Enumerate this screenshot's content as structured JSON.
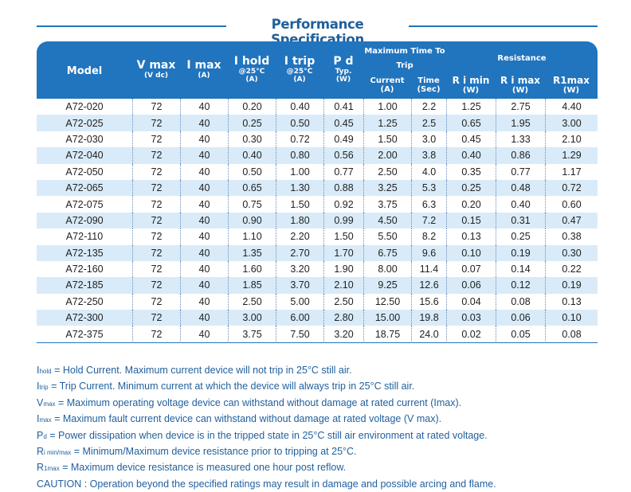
{
  "title": "Performance Specification",
  "headers": {
    "model": "Model",
    "vmax": "V max",
    "vmax_unit": "(V dc)",
    "imax": "I max",
    "imax_unit": "(A)",
    "ihold": "I hold",
    "ihold_cond": "@25°C",
    "ihold_unit": "(A)",
    "itrip": "I trip",
    "itrip_cond": "@25°C",
    "itrip_unit": "(A)",
    "pd": "P d",
    "pd_typ": "Typ.",
    "pd_unit": "(W)",
    "max_time_group": "Maximum Time To Trip",
    "current": "Current",
    "current_unit": "(A)",
    "time": "Time",
    "time_unit": "(Sec)",
    "resistance_group": "Resistance",
    "rimin": "R i min",
    "rimin_unit": "(W)",
    "rimax": "R i max",
    "rimax_unit": "(W)",
    "r1max": "R1max",
    "r1max_unit": "(W)"
  },
  "rows": [
    [
      "A72-020",
      "72",
      "40",
      "0.20",
      "0.40",
      "0.41",
      "1.00",
      "2.2",
      "1.25",
      "2.75",
      "4.40"
    ],
    [
      "A72-025",
      "72",
      "40",
      "0.25",
      "0.50",
      "0.45",
      "1.25",
      "2.5",
      "0.65",
      "1.95",
      "3.00"
    ],
    [
      "A72-030",
      "72",
      "40",
      "0.30",
      "0.72",
      "0.49",
      "1.50",
      "3.0",
      "0.45",
      "1.33",
      "2.10"
    ],
    [
      "A72-040",
      "72",
      "40",
      "0.40",
      "0.80",
      "0.56",
      "2.00",
      "3.8",
      "0.40",
      "0.86",
      "1.29"
    ],
    [
      "A72-050",
      "72",
      "40",
      "0.50",
      "1.00",
      "0.77",
      "2.50",
      "4.0",
      "0.35",
      "0.77",
      "1.17"
    ],
    [
      "A72-065",
      "72",
      "40",
      "0.65",
      "1.30",
      "0.88",
      "3.25",
      "5.3",
      "0.25",
      "0.48",
      "0.72"
    ],
    [
      "A72-075",
      "72",
      "40",
      "0.75",
      "1.50",
      "0.92",
      "3.75",
      "6.3",
      "0.20",
      "0.40",
      "0.60"
    ],
    [
      "A72-090",
      "72",
      "40",
      "0.90",
      "1.80",
      "0.99",
      "4.50",
      "7.2",
      "0.15",
      "0.31",
      "0.47"
    ],
    [
      "A72-110",
      "72",
      "40",
      "1.10",
      "2.20",
      "1.50",
      "5.50",
      "8.2",
      "0.13",
      "0.25",
      "0.38"
    ],
    [
      "A72-135",
      "72",
      "40",
      "1.35",
      "2.70",
      "1.70",
      "6.75",
      "9.6",
      "0.10",
      "0.19",
      "0.30"
    ],
    [
      "A72-160",
      "72",
      "40",
      "1.60",
      "3.20",
      "1.90",
      "8.00",
      "11.4",
      "0.07",
      "0.14",
      "0.22"
    ],
    [
      "A72-185",
      "72",
      "40",
      "1.85",
      "3.70",
      "2.10",
      "9.25",
      "12.6",
      "0.06",
      "0.12",
      "0.19"
    ],
    [
      "A72-250",
      "72",
      "40",
      "2.50",
      "5.00",
      "2.50",
      "12.50",
      "15.6",
      "0.04",
      "0.08",
      "0.13"
    ],
    [
      "A72-300",
      "72",
      "40",
      "3.00",
      "6.00",
      "2.80",
      "15.00",
      "19.8",
      "0.03",
      "0.06",
      "0.10"
    ],
    [
      "A72-375",
      "72",
      "40",
      "3.75",
      "7.50",
      "3.20",
      "18.75",
      "24.0",
      "0.02",
      "0.05",
      "0.08"
    ]
  ],
  "notes": [
    {
      "sym": "I",
      "sub": "hold",
      "text": " = Hold Current. Maximum current device will not trip in 25°C still air."
    },
    {
      "sym": "I",
      "sub": "trip",
      "text": " = Trip Current. Minimum current at which the device will always trip in 25°C still air."
    },
    {
      "sym": "V",
      "sub": "max",
      "text": " = Maximum operating voltage device can withstand without damage at rated current (Imax)."
    },
    {
      "sym": "I",
      "sub": "max",
      "text": " = Maximum fault current device can withstand without damage at rated voltage (V max)."
    },
    {
      "sym": "P",
      "sub": "d",
      "text": " = Power dissipation when device is in the tripped state in 25°C still air environment at rated voltage."
    },
    {
      "sym": "R",
      "sub": "i min/max",
      "text": " = Minimum/Maximum device resistance prior to tripping at 25°C."
    },
    {
      "sym": "R",
      "sub": "1max",
      "text": " = Maximum device resistance is measured one hour post reflow."
    },
    {
      "sym": "",
      "sub": "",
      "text": "CAUTION : Operation beyond the specified ratings may result in damage and possible arcing and flame."
    }
  ],
  "colors": {
    "header_bg": "#2174be",
    "alt_row": "#d9ebf8",
    "note_text": "#1f5f9e"
  }
}
